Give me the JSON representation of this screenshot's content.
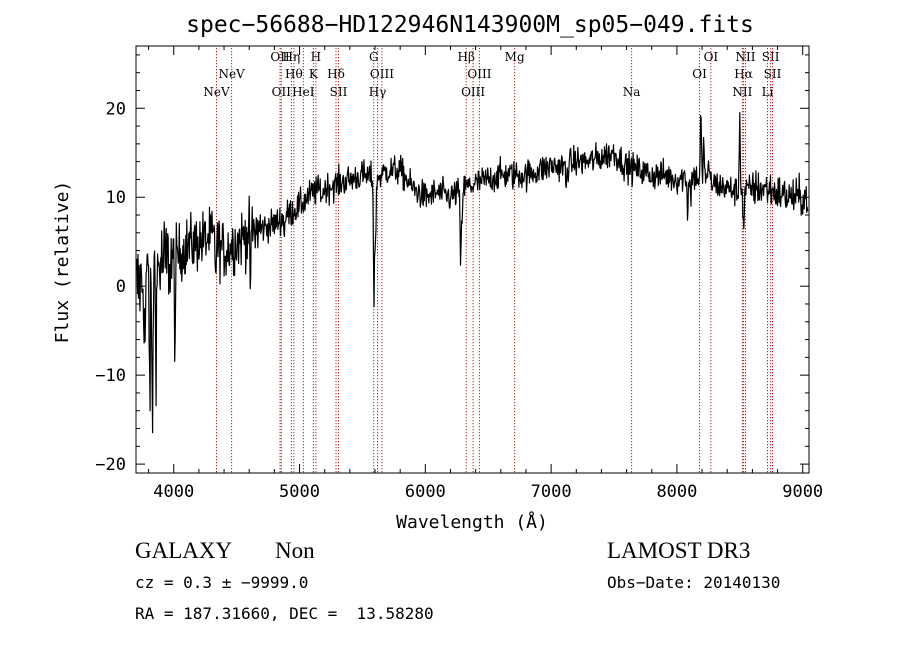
{
  "chart_data": {
    "type": "line",
    "title": "spec−56688−HD122946N143900M_sp05−049.fits",
    "xlabel": "Wavelength (Å)",
    "ylabel": "Flux (relative)",
    "xlim": [
      3700,
      9050
    ],
    "ylim": [
      -21,
      27
    ],
    "xticks": [
      4000,
      5000,
      6000,
      7000,
      8000,
      9000
    ],
    "yticks": [
      -20,
      -10,
      0,
      10,
      20
    ],
    "ytick_labels": [
      "−20",
      "−10",
      "0",
      "10",
      "20"
    ],
    "line_color": "#000000",
    "marker_color": "#b22222",
    "spectrum_knots": [
      [
        3700,
        0.0
      ],
      [
        3800,
        1.0
      ],
      [
        3900,
        2.5
      ],
      [
        4000,
        3.0
      ],
      [
        4100,
        4.5
      ],
      [
        4200,
        5.0
      ],
      [
        4300,
        5.5
      ],
      [
        4400,
        4.0
      ],
      [
        4500,
        5.0
      ],
      [
        4600,
        6.0
      ],
      [
        4700,
        6.5
      ],
      [
        4800,
        7.0
      ],
      [
        4900,
        8.0
      ],
      [
        5000,
        9.0
      ],
      [
        5100,
        10.5
      ],
      [
        5200,
        11.0
      ],
      [
        5300,
        11.5
      ],
      [
        5400,
        12.0
      ],
      [
        5500,
        12.5
      ],
      [
        5600,
        12.0
      ],
      [
        5700,
        13.0
      ],
      [
        5800,
        13.0
      ],
      [
        5900,
        11.0
      ],
      [
        6000,
        10.0
      ],
      [
        6100,
        10.5
      ],
      [
        6200,
        10.0
      ],
      [
        6300,
        11.0
      ],
      [
        6400,
        11.5
      ],
      [
        6500,
        12.0
      ],
      [
        6600,
        12.5
      ],
      [
        6700,
        12.5
      ],
      [
        6800,
        12.5
      ],
      [
        6900,
        13.0
      ],
      [
        7000,
        13.5
      ],
      [
        7100,
        13.5
      ],
      [
        7200,
        14.0
      ],
      [
        7300,
        14.0
      ],
      [
        7400,
        14.5
      ],
      [
        7500,
        15.0
      ],
      [
        7600,
        13.5
      ],
      [
        7700,
        13.0
      ],
      [
        7800,
        12.5
      ],
      [
        7900,
        12.5
      ],
      [
        8000,
        12.0
      ],
      [
        8100,
        12.5
      ],
      [
        8200,
        12.0
      ],
      [
        8300,
        11.5
      ],
      [
        8400,
        11.0
      ],
      [
        8500,
        10.5
      ],
      [
        8600,
        11.0
      ],
      [
        8700,
        11.0
      ],
      [
        8800,
        10.5
      ],
      [
        8900,
        10.0
      ],
      [
        9000,
        10.0
      ],
      [
        9050,
        10.0
      ]
    ],
    "features": [
      [
        4332,
        -3.0
      ],
      [
        4610,
        -6.0
      ],
      [
        4880,
        -1.5
      ],
      [
        5180,
        -1.0
      ],
      [
        5592,
        -14.0
      ],
      [
        5605,
        -8.0
      ],
      [
        6280,
        -8.0
      ],
      [
        6290,
        -4.0
      ],
      [
        7120,
        -3.0
      ],
      [
        8085,
        -4.5
      ],
      [
        8110,
        -3.0
      ],
      [
        8190,
        8.0
      ],
      [
        8215,
        5.0
      ],
      [
        8250,
        3.0
      ],
      [
        8500,
        9.0
      ],
      [
        8530,
        -5.0
      ],
      [
        3810,
        -14.0
      ],
      [
        3830,
        -20.0
      ],
      [
        3770,
        -8.0
      ],
      [
        3860,
        -8.0
      ],
      [
        4010,
        -10.0
      ]
    ],
    "line_markers": [
      {
        "wavelength": 4340,
        "label": "NeV",
        "row": 3
      },
      {
        "wavelength": 4460,
        "label": "NeV",
        "row": 2
      },
      {
        "wavelength": 4845,
        "label": "OII",
        "row": 1
      },
      {
        "wavelength": 4855,
        "label": "OII",
        "row": 3
      },
      {
        "wavelength": 4935,
        "label": "Hη",
        "row": 1
      },
      {
        "wavelength": 4955,
        "label": "Hθ",
        "row": 2
      },
      {
        "wavelength": 5030,
        "label": "HeI",
        "row": 3
      },
      {
        "wavelength": 5130,
        "label": "H",
        "row": 1
      },
      {
        "wavelength": 5110,
        "label": "K",
        "row": 2
      },
      {
        "wavelength": 5290,
        "label": "Hδ",
        "row": 2
      },
      {
        "wavelength": 5310,
        "label": "SII",
        "row": 3
      },
      {
        "wavelength": 5590,
        "label": "G",
        "row": 1
      },
      {
        "wavelength": 5655,
        "label": "OIII",
        "row": 2
      },
      {
        "wavelength": 5620,
        "label": "Hγ",
        "row": 3
      },
      {
        "wavelength": 6325,
        "label": "Hβ",
        "row": 1
      },
      {
        "wavelength": 6430,
        "label": "OIII",
        "row": 2
      },
      {
        "wavelength": 6380,
        "label": "OIII",
        "row": 3
      },
      {
        "wavelength": 6710,
        "label": "Mg",
        "row": 1
      },
      {
        "wavelength": 7640,
        "label": "Na",
        "row": 3
      },
      {
        "wavelength": 8270,
        "label": "OI",
        "row": 1
      },
      {
        "wavelength": 8180,
        "label": "OI",
        "row": 2
      },
      {
        "wavelength": 8545,
        "label": "NII",
        "row": 1
      },
      {
        "wavelength": 8530,
        "label": "Hα",
        "row": 2
      },
      {
        "wavelength": 8520,
        "label": "NII",
        "row": 3
      },
      {
        "wavelength": 8745,
        "label": "SII",
        "row": 1
      },
      {
        "wavelength": 8760,
        "label": "SII",
        "row": 2
      },
      {
        "wavelength": 8720,
        "label": "Li",
        "row": 3
      }
    ]
  },
  "info": {
    "object_class": "GALAXY",
    "subclass": "Non",
    "redshift_line": "cz = 0.3 ± −9999.0",
    "coords_line": "RA = 187.31660, DEC =  13.58280",
    "survey": "LAMOST DR3",
    "obs_date": "Obs−Date: 20140130"
  }
}
